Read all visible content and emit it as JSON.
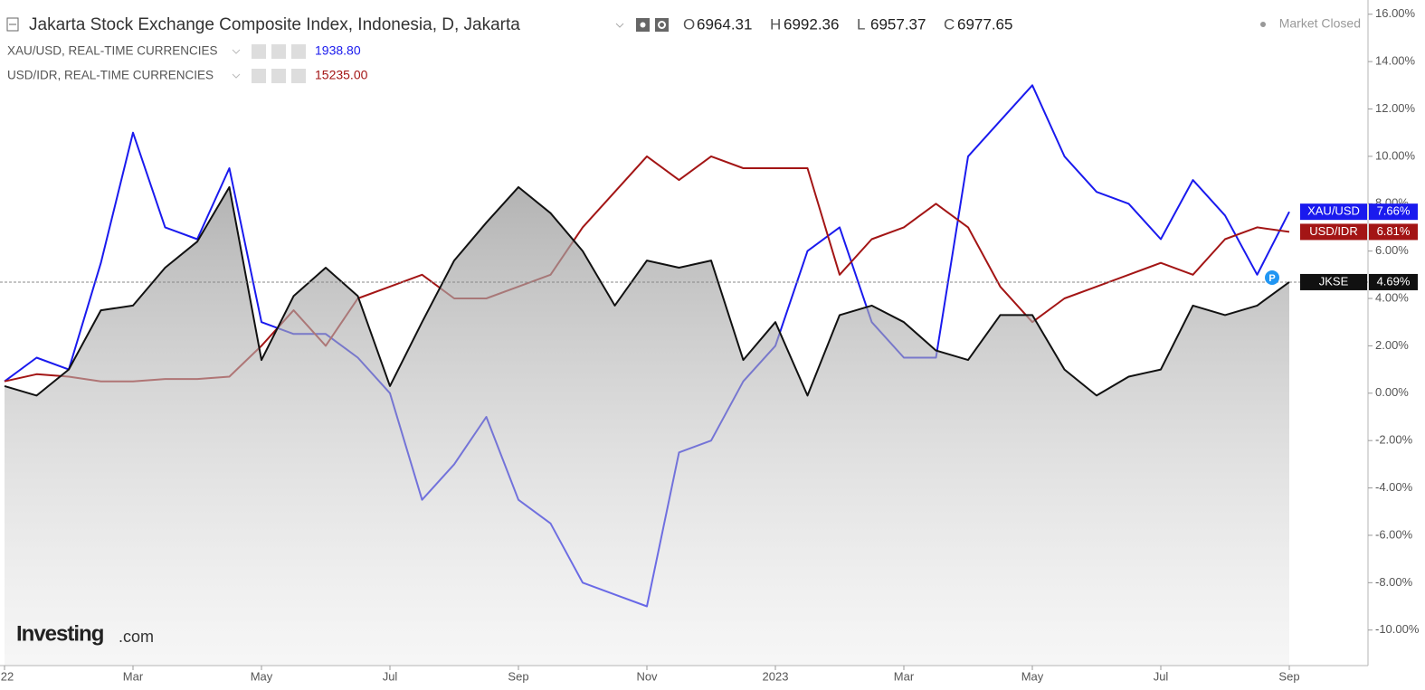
{
  "chart_data": {
    "type": "line",
    "title": "Jakarta Stock Exchange Composite Index, Indonesia, D, Jakarta",
    "ohlc": [
      {
        "label": "O",
        "text": "6964.31"
      },
      {
        "label": "H",
        "text": "6992.36"
      },
      {
        "label": "L",
        "text": "6957.37"
      },
      {
        "label": "C",
        "text": "6977.65"
      }
    ],
    "status": "Market Closed",
    "overlays": [
      {
        "label": "XAU/USD, REAL-TIME CURRENCIES",
        "quote": "1938.80",
        "color": "#1a1aee"
      },
      {
        "label": "USD/IDR, REAL-TIME CURRENCIES",
        "quote": "15235.00",
        "color": "#a31515"
      }
    ],
    "watermark": {
      "brand": "Investing",
      "suffix": ".com"
    },
    "marker_label": "P",
    "categories": [
      "22",
      null,
      null,
      null,
      "Mar",
      null,
      null,
      null,
      "May",
      null,
      null,
      null,
      "Jul",
      null,
      null,
      null,
      "Sep",
      null,
      null,
      null,
      "Nov",
      null,
      null,
      null,
      "2023",
      null,
      null,
      null,
      "Mar",
      null,
      null,
      null,
      "May",
      null,
      null,
      null,
      "Jul",
      null,
      null,
      null,
      "Sep"
    ],
    "series": [
      {
        "name": "XAU/USD",
        "color": "#1a1aee",
        "values": [
          0.5,
          1.5,
          1,
          5.5,
          11,
          7,
          6.5,
          9.5,
          3,
          2.5,
          2.5,
          1.5,
          0,
          -4.5,
          -3,
          -1,
          -4.5,
          -5.5,
          -8,
          -8.5,
          -9,
          -2.5,
          -2,
          0.5,
          2,
          6,
          7,
          3,
          1.5,
          1.5,
          10,
          11.5,
          13,
          10,
          8.5,
          8,
          6.5,
          9,
          7.5,
          5,
          7.66
        ],
        "value_labels": [
          null,
          null,
          null,
          null,
          null,
          null,
          null,
          null,
          null,
          null,
          null,
          null,
          null,
          null,
          null,
          null,
          null,
          null,
          null,
          null,
          null,
          null,
          null,
          null,
          null,
          null,
          null,
          null,
          null,
          null,
          null,
          null,
          null,
          null,
          null,
          null,
          null,
          null,
          null,
          null,
          "7.66%"
        ]
      },
      {
        "name": "USD/IDR",
        "color": "#a31515",
        "values": [
          0.5,
          0.8,
          0.7,
          0.5,
          0.5,
          0.6,
          0.6,
          0.7,
          2,
          3.5,
          2,
          4,
          4.5,
          5,
          4,
          4,
          4.5,
          5,
          7,
          8.5,
          10,
          9,
          10,
          9.5,
          9.5,
          9.5,
          5,
          6.5,
          7,
          8,
          7,
          4.5,
          3,
          4,
          4.5,
          5,
          5.5,
          5,
          6.5,
          7,
          6.81
        ],
        "value_labels": [
          null,
          null,
          null,
          null,
          null,
          null,
          null,
          null,
          null,
          null,
          null,
          null,
          null,
          null,
          null,
          null,
          null,
          null,
          null,
          null,
          null,
          null,
          null,
          null,
          null,
          null,
          null,
          null,
          null,
          null,
          null,
          null,
          null,
          null,
          null,
          null,
          null,
          null,
          null,
          null,
          "6.81%"
        ]
      },
      {
        "name": "JKSE",
        "color": "#111111",
        "area": true,
        "values": [
          0.3,
          -0.1,
          1,
          3.5,
          3.7,
          5.3,
          6.4,
          8.7,
          1.4,
          4.1,
          5.3,
          4.1,
          0.3,
          3,
          5.6,
          7.2,
          8.7,
          7.6,
          6,
          3.7,
          5.6,
          5.3,
          5.6,
          1.4,
          3,
          -0.1,
          3.3,
          3.7,
          3,
          1.8,
          1.4,
          3.3,
          3.3,
          1,
          -0.1,
          0.7,
          1,
          3.7,
          3.3,
          3.7,
          4.69
        ],
        "value_labels": [
          null,
          null,
          null,
          null,
          null,
          null,
          null,
          null,
          null,
          null,
          null,
          null,
          null,
          null,
          null,
          null,
          null,
          null,
          null,
          null,
          null,
          null,
          null,
          null,
          null,
          null,
          null,
          null,
          null,
          null,
          null,
          null,
          null,
          null,
          null,
          null,
          null,
          null,
          null,
          null,
          "4.69%"
        ]
      }
    ],
    "ylim": [
      -11.5,
      16.6
    ],
    "yticks": [
      {
        "value": -10,
        "label": "-10.00%"
      },
      {
        "value": -8,
        "label": "-8.00%"
      },
      {
        "value": -6,
        "label": "-6.00%"
      },
      {
        "value": -4,
        "label": "-4.00%"
      },
      {
        "value": -2,
        "label": "-2.00%"
      },
      {
        "value": 0,
        "label": "0.00%"
      },
      {
        "value": 2,
        "label": "2.00%"
      },
      {
        "value": 4,
        "label": "4.00%"
      },
      {
        "value": 6,
        "label": "6.00%"
      },
      {
        "value": 8,
        "label": "8.00%"
      },
      {
        "value": 10,
        "label": "10.00%"
      },
      {
        "value": 12,
        "label": "12.00%"
      },
      {
        "value": 14,
        "label": "14.00%"
      },
      {
        "value": 16,
        "label": "16.00%"
      }
    ]
  }
}
